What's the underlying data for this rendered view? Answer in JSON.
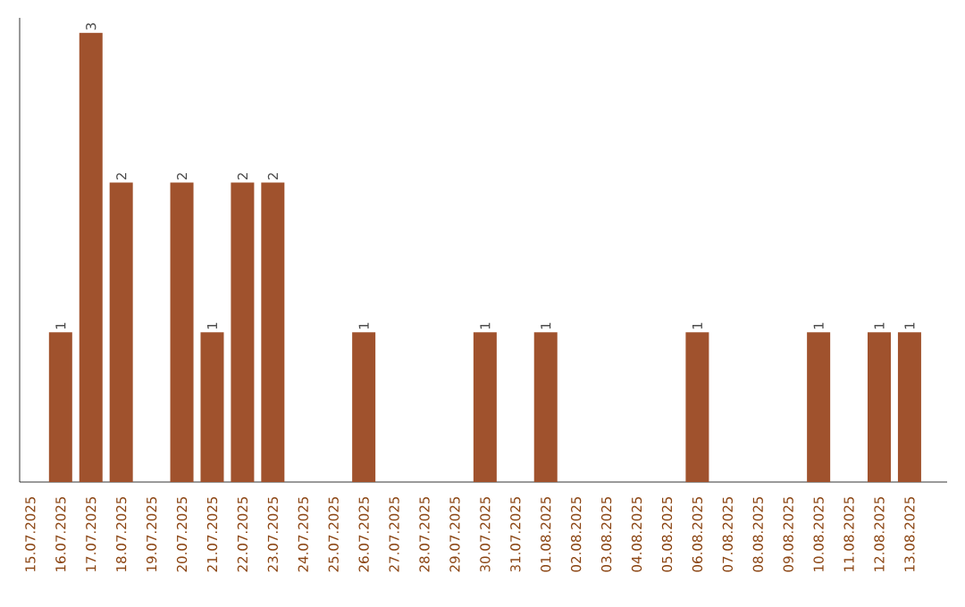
{
  "chart_data": {
    "type": "bar",
    "categories": [
      "15.07.2025",
      "16.07.2025",
      "17.07.2025",
      "18.07.2025",
      "19.07.2025",
      "20.07.2025",
      "21.07.2025",
      "22.07.2025",
      "23.07.2025",
      "24.07.2025",
      "25.07.2025",
      "26.07.2025",
      "27.07.2025",
      "28.07.2025",
      "29.07.2025",
      "30.07.2025",
      "31.07.2025",
      "01.08.2025",
      "02.08.2025",
      "03.08.2025",
      "04.08.2025",
      "05.08.2025",
      "06.08.2025",
      "07.08.2025",
      "08.08.2025",
      "09.08.2025",
      "10.08.2025",
      "11.08.2025",
      "12.08.2025",
      "13.08.2025"
    ],
    "values": [
      0,
      1,
      3,
      2,
      0,
      2,
      1,
      2,
      2,
      0,
      0,
      1,
      0,
      0,
      0,
      1,
      0,
      1,
      0,
      0,
      0,
      0,
      1,
      0,
      0,
      0,
      1,
      0,
      1,
      1
    ],
    "value_labels": [
      null,
      "1",
      "3",
      "2",
      null,
      "2",
      "1",
      "2",
      "2",
      null,
      null,
      "1",
      null,
      null,
      null,
      "1",
      null,
      "1",
      null,
      null,
      null,
      null,
      "1",
      null,
      null,
      null,
      "1",
      null,
      "1",
      "1"
    ],
    "color": "#a0522d",
    "ylim": [
      0,
      3.1
    ],
    "tick_labels": "x",
    "grid": false
  }
}
